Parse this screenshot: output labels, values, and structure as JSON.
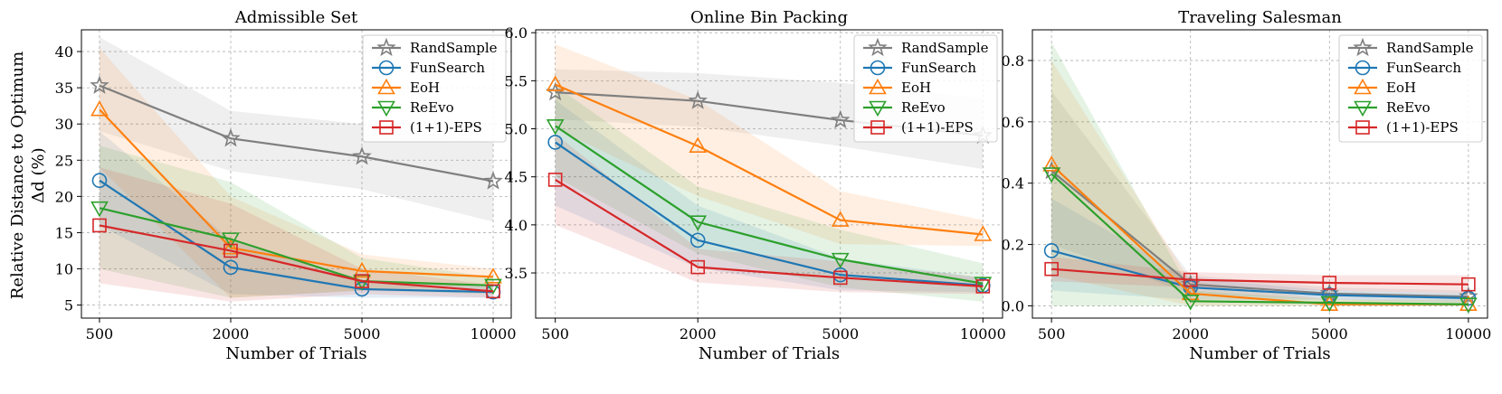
{
  "figure": {
    "ylabel_line1": "Relative Distance to Optimum",
    "ylabel_line2": "Δd (%)"
  },
  "legend": [
    {
      "name": "RandSample",
      "color": "#7f7f7f",
      "marker": "star"
    },
    {
      "name": "FunSearch",
      "color": "#1f77b4",
      "marker": "circle"
    },
    {
      "name": "EoH",
      "color": "#ff7f0e",
      "marker": "triangle-up"
    },
    {
      "name": "ReEvo",
      "color": "#2ca02c",
      "marker": "triangle-down"
    },
    {
      "name": "(1+1)-EPS",
      "color": "#d62728",
      "marker": "square"
    }
  ],
  "chart_data": [
    {
      "type": "line",
      "title": "Admissible Set",
      "xlabel": "Number of Trials",
      "ylabel": "Relative Distance to Optimum Δd (%)",
      "categories": [
        "500",
        "2000",
        "5000",
        "10000"
      ],
      "ylim": [
        3.2,
        43
      ],
      "yticks": [
        5,
        10,
        15,
        20,
        25,
        30,
        35,
        40
      ],
      "ytick_labels": [
        "5",
        "10",
        "15",
        "20",
        "25",
        "30",
        "35",
        "40"
      ],
      "grid": true,
      "legend_position": "top-right",
      "series": [
        {
          "name": "RandSample",
          "values": [
            35.3,
            28.0,
            25.5,
            22.1
          ],
          "band": [
            [
              29.0,
              42.0
            ],
            [
              23.5,
              31.8
            ],
            [
              21.0,
              30.0
            ],
            [
              16.5,
              27.5
            ]
          ]
        },
        {
          "name": "FunSearch",
          "values": [
            22.2,
            10.2,
            7.2,
            6.8
          ],
          "band": [
            [
              16.0,
              29.0
            ],
            [
              6.5,
              14.0
            ],
            [
              6.0,
              8.5
            ],
            [
              6.0,
              7.6
            ]
          ]
        },
        {
          "name": "EoH",
          "values": [
            32.0,
            12.9,
            9.7,
            8.9
          ],
          "band": [
            [
              24.0,
              40.5
            ],
            [
              6.0,
              20.0
            ],
            [
              7.0,
              12.0
            ],
            [
              7.8,
              10.0
            ]
          ]
        },
        {
          "name": "ReEvo",
          "values": [
            18.4,
            14.1,
            8.3,
            7.7
          ],
          "band": [
            [
              10.0,
              27.0
            ],
            [
              6.0,
              22.0
            ],
            [
              7.0,
              11.5
            ],
            [
              6.5,
              8.8
            ]
          ]
        },
        {
          "name": "(1+1)-EPS",
          "values": [
            16.0,
            12.5,
            8.3,
            6.9
          ],
          "band": [
            [
              8.0,
              24.0
            ],
            [
              5.5,
              19.0
            ],
            [
              6.5,
              10.0
            ],
            [
              6.0,
              7.8
            ]
          ]
        }
      ]
    },
    {
      "type": "line",
      "title": "Online Bin Packing",
      "xlabel": "Number of Trials",
      "ylabel": "",
      "categories": [
        "500",
        "2000",
        "5000",
        "10000"
      ],
      "ylim": [
        3.03,
        6.03
      ],
      "yticks": [
        3.5,
        4.0,
        4.5,
        5.0,
        5.5,
        6.0
      ],
      "ytick_labels": [
        "3.5",
        "4.0",
        "4.5",
        "5.0",
        "5.5",
        "6.0"
      ],
      "grid": true,
      "legend_position": "top-right",
      "series": [
        {
          "name": "RandSample",
          "values": [
            5.38,
            5.29,
            5.09,
            4.93
          ],
          "band": [
            [
              5.1,
              5.62
            ],
            [
              5.02,
              5.58
            ],
            [
              4.82,
              5.48
            ],
            [
              4.58,
              5.32
            ]
          ]
        },
        {
          "name": "FunSearch",
          "values": [
            4.86,
            3.84,
            3.48,
            3.37
          ],
          "band": [
            [
              4.2,
              5.3
            ],
            [
              3.55,
              4.2
            ],
            [
              3.32,
              3.65
            ],
            [
              3.3,
              3.45
            ]
          ]
        },
        {
          "name": "EoH",
          "values": [
            5.46,
            4.82,
            4.05,
            3.9
          ],
          "band": [
            [
              5.0,
              5.88
            ],
            [
              4.3,
              5.3
            ],
            [
              3.8,
              4.35
            ],
            [
              3.78,
              4.05
            ]
          ]
        },
        {
          "name": "ReEvo",
          "values": [
            5.03,
            4.03,
            3.64,
            3.39
          ],
          "band": [
            [
              4.5,
              5.45
            ],
            [
              3.7,
              4.4
            ],
            [
              3.35,
              3.95
            ],
            [
              3.2,
              3.6
            ]
          ]
        },
        {
          "name": "(1+1)-EPS",
          "values": [
            4.47,
            3.56,
            3.45,
            3.36
          ],
          "band": [
            [
              4.0,
              4.95
            ],
            [
              3.4,
              3.75
            ],
            [
              3.3,
              3.62
            ],
            [
              3.28,
              3.45
            ]
          ]
        }
      ]
    },
    {
      "type": "line",
      "title": "Traveling Salesman",
      "xlabel": "Number of Trials",
      "ylabel": "",
      "categories": [
        "500",
        "2000",
        "5000",
        "10000"
      ],
      "ylim": [
        -0.04,
        0.9
      ],
      "yticks": [
        0.0,
        0.2,
        0.4,
        0.6,
        0.8
      ],
      "ytick_labels": [
        "0.0",
        "0.2",
        "0.4",
        "0.6",
        "0.8"
      ],
      "grid": true,
      "legend_position": "top-right",
      "series": [
        {
          "name": "RandSample",
          "values": [
            0.44,
            0.07,
            0.04,
            0.03
          ],
          "band": [
            [
              0.2,
              0.7
            ],
            [
              0.04,
              0.1
            ],
            [
              0.02,
              0.06
            ],
            [
              0.02,
              0.05
            ]
          ]
        },
        {
          "name": "FunSearch",
          "values": [
            0.18,
            0.06,
            0.035,
            0.025
          ],
          "band": [
            [
              0.05,
              0.35
            ],
            [
              0.02,
              0.09
            ],
            [
              0.02,
              0.05
            ],
            [
              0.01,
              0.04
            ]
          ]
        },
        {
          "name": "EoH",
          "values": [
            0.46,
            0.04,
            0.005,
            0.005
          ],
          "band": [
            [
              0.1,
              0.8
            ],
            [
              0.0,
              0.08
            ],
            [
              0.0,
              0.02
            ],
            [
              0.0,
              0.02
            ]
          ]
        },
        {
          "name": "ReEvo",
          "values": [
            0.43,
            0.015,
            0.01,
            0.005
          ],
          "band": [
            [
              0.0,
              0.86
            ],
            [
              0.0,
              0.05
            ],
            [
              0.0,
              0.02
            ],
            [
              0.0,
              0.02
            ]
          ]
        },
        {
          "name": "(1+1)-EPS",
          "values": [
            0.12,
            0.085,
            0.075,
            0.07
          ],
          "band": [
            [
              0.08,
              0.16
            ],
            [
              0.06,
              0.11
            ],
            [
              0.05,
              0.1
            ],
            [
              0.04,
              0.1
            ]
          ]
        }
      ]
    }
  ]
}
